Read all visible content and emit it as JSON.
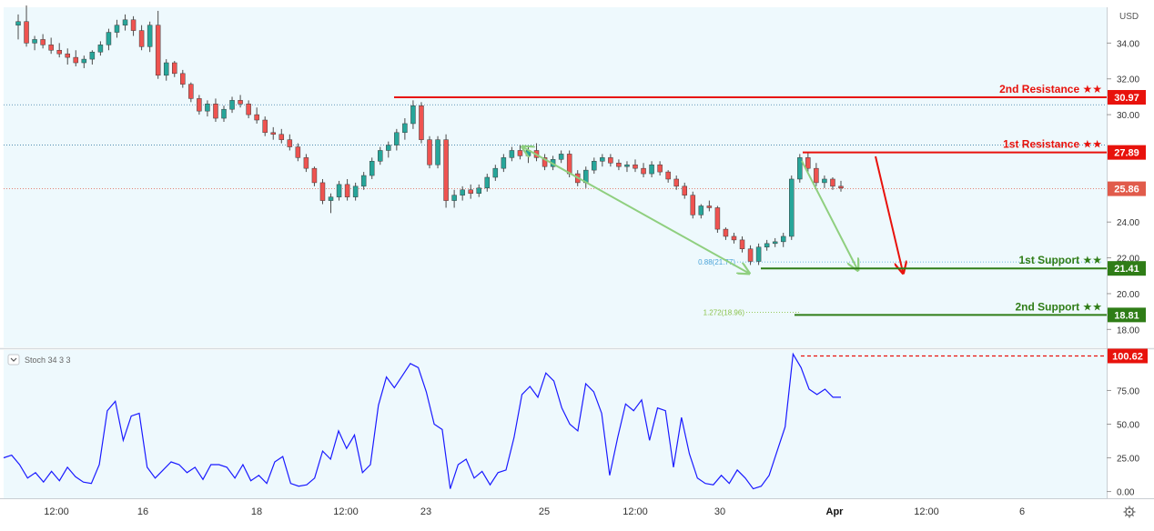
{
  "colors": {
    "background": "#eef9fd",
    "candle_up": "#26a69a",
    "candle_down": "#ef5350",
    "resistance": "#e8120c",
    "support": "#2f7d17",
    "projection_arrow": "#8fcf7f",
    "fib_label_1": "#4aa3d8",
    "fib_label_2": "#8bc34a",
    "stoch_line": "#1a1aff",
    "price_line": "#e15b4b"
  },
  "chart_data": [
    {
      "type": "candlestick",
      "currency": "USD",
      "ylim": [
        17,
        36
      ],
      "y_ticks": [
        "34.00",
        "32.00",
        "30.00",
        "24.00",
        "22.00",
        "20.00",
        "18.00"
      ],
      "x_ticks": [
        "12:00",
        "16",
        "18",
        "12:00",
        "23",
        "25",
        "12:00",
        "30",
        "Apr",
        "12:00",
        "6"
      ],
      "current_price": "25.86",
      "levels": [
        {
          "name": "2nd Resistance ★★",
          "value": 30.97,
          "label": "30.97",
          "color": "#e8120c"
        },
        {
          "name": "1st Resistance ★★",
          "value": 27.89,
          "label": "27.89",
          "color": "#e8120c"
        },
        {
          "name": "1st Support ★★",
          "value": 21.41,
          "label": "21.41",
          "color": "#2f7d17"
        },
        {
          "name": "2nd Support ★★",
          "value": 18.81,
          "label": "18.81",
          "color": "#2f7d17"
        }
      ],
      "fib_labels": [
        {
          "text": "0.88(21.77)",
          "value": 21.77
        },
        {
          "text": "1.272(18.96)",
          "value": 18.96
        }
      ],
      "candles": [
        [
          35.0,
          35.6,
          34.2,
          35.2
        ],
        [
          35.2,
          36.1,
          33.8,
          34.0
        ],
        [
          34.0,
          34.4,
          33.6,
          34.2
        ],
        [
          34.2,
          34.5,
          33.7,
          33.9
        ],
        [
          33.9,
          34.3,
          33.4,
          33.6
        ],
        [
          33.6,
          34.0,
          33.2,
          33.4
        ],
        [
          33.4,
          33.7,
          32.8,
          33.2
        ],
        [
          33.2,
          33.6,
          32.7,
          32.9
        ],
        [
          32.9,
          33.3,
          32.6,
          33.1
        ],
        [
          33.1,
          33.6,
          32.8,
          33.5
        ],
        [
          33.5,
          34.1,
          33.3,
          33.9
        ],
        [
          33.9,
          34.8,
          33.6,
          34.6
        ],
        [
          34.6,
          35.3,
          34.3,
          35.0
        ],
        [
          35.0,
          35.6,
          34.7,
          35.3
        ],
        [
          35.3,
          35.5,
          34.4,
          34.7
        ],
        [
          34.7,
          35.0,
          33.6,
          33.8
        ],
        [
          33.8,
          35.2,
          33.5,
          35.0
        ],
        [
          35.0,
          35.8,
          32.0,
          32.2
        ],
        [
          32.2,
          33.1,
          31.9,
          32.9
        ],
        [
          32.9,
          33.0,
          32.1,
          32.3
        ],
        [
          32.3,
          32.5,
          31.5,
          31.7
        ],
        [
          31.7,
          31.8,
          30.7,
          30.9
        ],
        [
          30.9,
          31.1,
          30.0,
          30.2
        ],
        [
          30.2,
          30.8,
          29.9,
          30.6
        ],
        [
          30.6,
          30.9,
          29.6,
          29.8
        ],
        [
          29.8,
          30.5,
          29.6,
          30.3
        ],
        [
          30.3,
          31.0,
          30.1,
          30.8
        ],
        [
          30.8,
          31.1,
          30.4,
          30.6
        ],
        [
          30.6,
          30.8,
          29.8,
          30.0
        ],
        [
          30.0,
          30.4,
          29.5,
          29.7
        ],
        [
          29.7,
          29.9,
          28.8,
          29.0
        ],
        [
          29.0,
          29.3,
          28.6,
          28.9
        ],
        [
          28.9,
          29.2,
          28.4,
          28.6
        ],
        [
          28.6,
          28.9,
          28.0,
          28.2
        ],
        [
          28.2,
          28.4,
          27.4,
          27.6
        ],
        [
          27.6,
          27.8,
          26.8,
          27.0
        ],
        [
          27.0,
          27.1,
          26.0,
          26.2
        ],
        [
          26.2,
          26.4,
          25.0,
          25.2
        ],
        [
          25.2,
          25.6,
          24.5,
          25.4
        ],
        [
          25.4,
          26.3,
          25.2,
          26.1
        ],
        [
          26.1,
          26.4,
          25.2,
          25.4
        ],
        [
          25.4,
          26.2,
          25.2,
          26.0
        ],
        [
          26.0,
          26.8,
          25.8,
          26.6
        ],
        [
          26.6,
          27.6,
          26.4,
          27.4
        ],
        [
          27.4,
          28.2,
          27.2,
          28.0
        ],
        [
          28.0,
          28.5,
          27.6,
          28.3
        ],
        [
          28.3,
          29.2,
          28.0,
          29.0
        ],
        [
          29.0,
          29.8,
          28.6,
          29.5
        ],
        [
          29.5,
          30.8,
          29.2,
          30.5
        ],
        [
          30.5,
          30.7,
          28.4,
          28.6
        ],
        [
          28.6,
          28.8,
          27.0,
          27.2
        ],
        [
          27.2,
          28.8,
          27.0,
          28.6
        ],
        [
          28.6,
          28.9,
          24.8,
          25.2
        ],
        [
          25.2,
          25.8,
          24.8,
          25.5
        ],
        [
          25.5,
          26.0,
          25.2,
          25.8
        ],
        [
          25.8,
          26.1,
          25.3,
          25.6
        ],
        [
          25.6,
          26.1,
          25.4,
          25.9
        ],
        [
          25.9,
          26.7,
          25.7,
          26.5
        ],
        [
          26.5,
          27.2,
          26.3,
          27.0
        ],
        [
          27.0,
          27.8,
          26.8,
          27.6
        ],
        [
          27.6,
          28.2,
          27.4,
          28.0
        ],
        [
          28.0,
          28.3,
          27.5,
          27.7
        ],
        [
          27.7,
          28.2,
          27.3,
          28.0
        ],
        [
          28.0,
          28.4,
          27.4,
          27.6
        ],
        [
          27.6,
          27.8,
          26.9,
          27.1
        ],
        [
          27.1,
          27.7,
          26.9,
          27.5
        ],
        [
          27.5,
          28.0,
          27.3,
          27.8
        ],
        [
          27.8,
          28.0,
          26.5,
          26.7
        ],
        [
          26.7,
          26.9,
          26.0,
          26.2
        ],
        [
          26.2,
          27.1,
          25.9,
          26.9
        ],
        [
          26.9,
          27.6,
          26.7,
          27.4
        ],
        [
          27.4,
          27.8,
          27.1,
          27.6
        ],
        [
          27.6,
          27.8,
          27.1,
          27.3
        ],
        [
          27.3,
          27.5,
          26.9,
          27.1
        ],
        [
          27.1,
          27.4,
          26.8,
          27.2
        ],
        [
          27.2,
          27.5,
          26.8,
          27.0
        ],
        [
          27.0,
          27.3,
          26.5,
          26.7
        ],
        [
          26.7,
          27.4,
          26.5,
          27.2
        ],
        [
          27.2,
          27.4,
          26.6,
          26.8
        ],
        [
          26.8,
          26.9,
          26.2,
          26.4
        ],
        [
          26.4,
          26.6,
          25.8,
          26.0
        ],
        [
          26.0,
          26.2,
          25.3,
          25.5
        ],
        [
          25.5,
          25.7,
          24.2,
          24.4
        ],
        [
          24.4,
          25.0,
          24.2,
          24.9
        ],
        [
          24.9,
          25.2,
          24.6,
          24.8
        ],
        [
          24.8,
          24.9,
          23.4,
          23.6
        ],
        [
          23.6,
          23.7,
          23.0,
          23.2
        ],
        [
          23.2,
          23.4,
          22.8,
          23.0
        ],
        [
          23.0,
          23.2,
          22.3,
          22.5
        ],
        [
          22.5,
          22.7,
          21.6,
          21.8
        ],
        [
          21.8,
          22.8,
          21.6,
          22.6
        ],
        [
          22.6,
          23.0,
          22.4,
          22.8
        ],
        [
          22.8,
          23.1,
          22.6,
          22.9
        ],
        [
          22.9,
          23.4,
          22.6,
          23.2
        ],
        [
          23.2,
          26.6,
          23.0,
          26.4
        ],
        [
          26.4,
          27.8,
          26.2,
          27.6
        ],
        [
          27.6,
          27.9,
          26.8,
          27.0
        ],
        [
          27.0,
          27.3,
          26.0,
          26.2
        ],
        [
          26.2,
          26.6,
          25.9,
          26.4
        ],
        [
          26.4,
          26.5,
          25.8,
          26.0
        ],
        [
          26.0,
          26.3,
          25.7,
          25.9
        ]
      ]
    },
    {
      "type": "line",
      "title": "Stoch 34 3 3",
      "ylim": [
        -5,
        105
      ],
      "y_ticks": [
        "75.00",
        "50.00",
        "25.00",
        "0.00"
      ],
      "current_value": "100.62",
      "level_value": 100.62,
      "values": [
        25,
        27,
        20,
        10,
        14,
        7,
        15,
        8,
        18,
        11,
        7,
        6,
        20,
        60,
        67,
        38,
        56,
        58,
        18,
        10,
        16,
        22,
        20,
        14,
        18,
        9,
        20,
        20,
        18,
        10,
        20,
        8,
        12,
        6,
        22,
        26,
        6,
        4,
        5,
        10,
        30,
        24,
        45,
        32,
        42,
        14,
        20,
        64,
        85,
        77,
        86,
        95,
        92,
        74,
        50,
        46,
        2,
        20,
        24,
        10,
        15,
        5,
        14,
        16,
        40,
        72,
        78,
        70,
        88,
        82,
        62,
        50,
        45,
        80,
        74,
        58,
        12,
        40,
        65,
        60,
        68,
        38,
        62,
        60,
        18,
        55,
        28,
        10,
        6,
        5,
        12,
        6,
        16,
        10,
        2,
        4,
        12,
        30,
        48,
        102,
        92,
        76,
        72,
        76,
        70,
        70
      ]
    }
  ]
}
